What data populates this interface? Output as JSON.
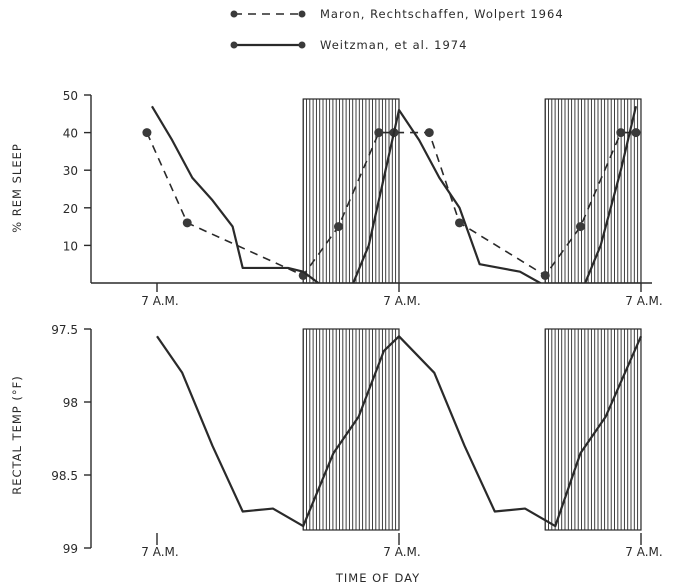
{
  "chart_data": [
    {
      "type": "line",
      "ylabel": "% REM SLEEP",
      "ylim": [
        0,
        50
      ],
      "yticks": [
        10,
        20,
        30,
        40,
        50
      ],
      "xtick_labels": [
        "7 A.M.",
        "7 A.M.",
        "7 A.M."
      ],
      "x_unit": "hours from first 7 A.M.",
      "legend_placement": "top-center",
      "night_periods": [
        [
          14.5,
          24
        ],
        [
          38.5,
          48
        ]
      ],
      "series": [
        {
          "name": "Maron, Rechtschaffen, Wolpert 1964",
          "style": "dashed-markers",
          "x": [
            -1,
            3,
            14.5,
            18,
            22,
            23.5,
            27,
            30,
            38.5,
            42,
            46,
            47.5
          ],
          "y": [
            40,
            16,
            2,
            15,
            40,
            40,
            40,
            16,
            2,
            15,
            40,
            40
          ]
        },
        {
          "name": "Weitzman, et al. 1974",
          "style": "solid",
          "x": [
            -0.5,
            1.5,
            3.5,
            5.5,
            7.5,
            8.5,
            10.5,
            13,
            14.5,
            16,
            17.5,
            19,
            21,
            24,
            26,
            28,
            30,
            32,
            34,
            36,
            38,
            40,
            42,
            44,
            46,
            47.5
          ],
          "y": [
            47,
            38,
            28,
            22,
            15,
            4,
            4,
            4,
            3,
            0,
            -3,
            -3,
            10,
            46,
            38,
            28,
            20,
            5,
            4,
            3,
            0,
            -3,
            -3,
            10,
            30,
            47
          ]
        }
      ]
    },
    {
      "type": "line",
      "ylabel": "RECTAL TEMP (°F)",
      "xlabel": "TIME OF DAY",
      "ylim": [
        99,
        97.5
      ],
      "ytick_labels": [
        "97.5",
        "98",
        "98.5",
        "99"
      ],
      "yticks": [
        97.5,
        98,
        98.5,
        99
      ],
      "xtick_labels": [
        "7 A.M.",
        "7 A.M.",
        "7 A.M."
      ],
      "x_unit": "hours from first 7 A.M.",
      "night_periods": [
        [
          14.5,
          24
        ],
        [
          38.5,
          48
        ]
      ],
      "series": [
        {
          "style": "solid",
          "x": [
            0,
            2.5,
            5.5,
            8.5,
            11.5,
            14.5,
            17.5,
            20,
            22.5,
            24,
            27.5,
            30.5,
            33.5,
            36.5,
            39.5,
            42,
            44.5,
            48
          ],
          "y": [
            97.55,
            97.8,
            98.3,
            98.75,
            98.73,
            98.85,
            98.35,
            98.1,
            97.65,
            97.55,
            97.8,
            98.3,
            98.75,
            98.73,
            98.85,
            98.35,
            98.1,
            97.55
          ]
        }
      ]
    }
  ]
}
